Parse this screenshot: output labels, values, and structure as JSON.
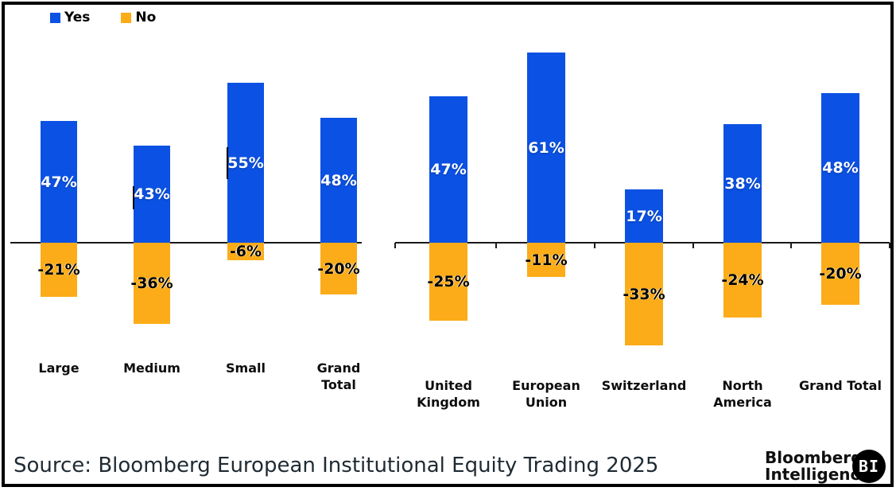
{
  "legend": {
    "items": [
      {
        "label": "Yes",
        "color": "#0b51e3"
      },
      {
        "label": "No",
        "color": "#fbac18"
      }
    ]
  },
  "chart_data": {
    "type": "bar",
    "orientation": "vertical",
    "unit": "%",
    "grid": false,
    "legend_position": "top-left",
    "legend": [
      "Yes",
      "No"
    ],
    "panels": [
      {
        "categories": [
          "Large",
          "Medium",
          "Small",
          "Grand\nTotal"
        ],
        "series": [
          {
            "name": "Yes",
            "color": "#0b51e3",
            "values": [
              47,
              43,
              55,
              48
            ]
          },
          {
            "name": "No",
            "color": "#fbac18",
            "values": [
              -21,
              -36,
              -6,
              -20
            ]
          }
        ]
      },
      {
        "categories": [
          "United\nKingdom",
          "European\nUnion",
          "Switzerland",
          "North\nAmerica",
          "Grand Total"
        ],
        "series": [
          {
            "name": "Yes",
            "color": "#0b51e3",
            "values": [
              47,
              61,
              17,
              38,
              48
            ]
          },
          {
            "name": "No",
            "color": "#fbac18",
            "values": [
              -25,
              -11,
              -33,
              -24,
              -20
            ]
          }
        ]
      }
    ]
  },
  "footer": {
    "source": "Source: Bloomberg European Institutional Equity Trading 2025",
    "brand_line1": "Bloomberg",
    "brand_line2": "Intelligence",
    "badge": "BI"
  }
}
